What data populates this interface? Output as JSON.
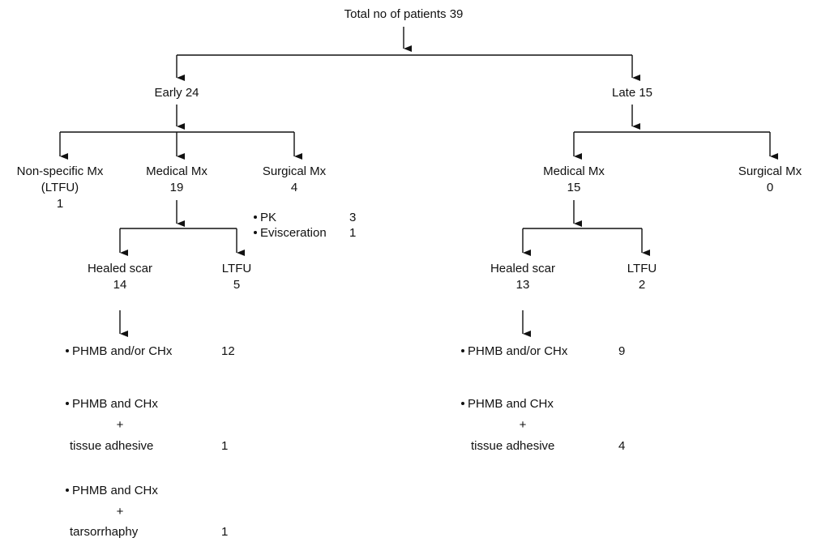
{
  "root": {
    "label": "Total no of patients 39"
  },
  "early": {
    "label": "Early 24",
    "nonspecific": {
      "label": "Non-specific Mx",
      "sub": "(LTFU)",
      "count": "1"
    },
    "medical": {
      "label": "Medical Mx",
      "count": "19"
    },
    "surgical": {
      "label": "Surgical Mx",
      "count": "4",
      "items": [
        {
          "label": "PK",
          "count": "3"
        },
        {
          "label": "Evisceration",
          "count": "1"
        }
      ]
    },
    "healed": {
      "label": "Healed scar",
      "count": "14"
    },
    "ltfu": {
      "label": "LTFU",
      "count": "5"
    },
    "treatments": [
      {
        "label": "PHMB and/or CHx",
        "plus": "",
        "extra": "",
        "count": "12"
      },
      {
        "label": "PHMB and CHx",
        "plus": "+",
        "extra": "tissue adhesive",
        "count": "1"
      },
      {
        "label": "PHMB and CHx",
        "plus": "+",
        "extra": "tarsorrhaphy",
        "count": "1"
      }
    ]
  },
  "late": {
    "label": "Late 15",
    "medical": {
      "label": "Medical Mx",
      "count": "15"
    },
    "surgical": {
      "label": "Surgical Mx",
      "count": "0"
    },
    "healed": {
      "label": "Healed scar",
      "count": "13"
    },
    "ltfu": {
      "label": "LTFU",
      "count": "2"
    },
    "treatments": [
      {
        "label": "PHMB and/or CHx",
        "plus": "",
        "extra": "",
        "count": "9"
      },
      {
        "label": "PHMB and CHx",
        "plus": "+",
        "extra": "tissue adhesive",
        "count": "4"
      }
    ]
  }
}
